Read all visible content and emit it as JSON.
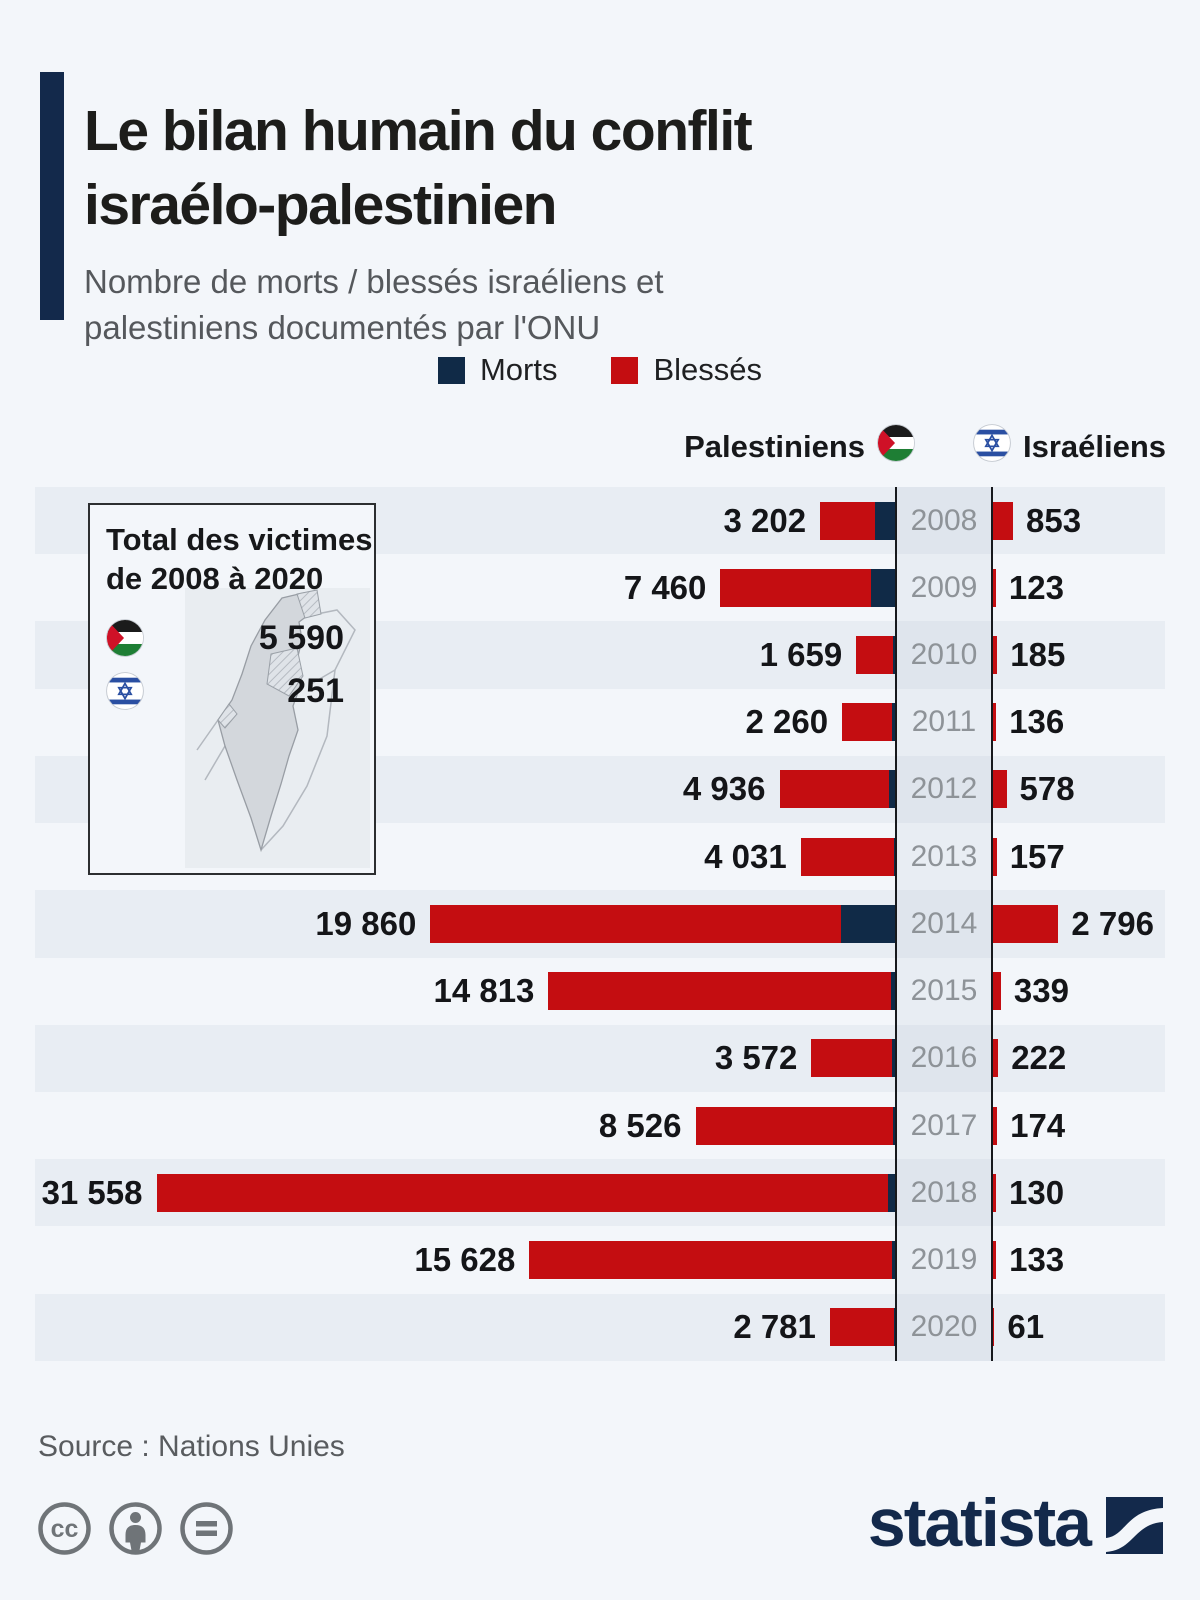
{
  "header": {
    "title": "Le bilan humain du conflit\nisraélo-palestinien",
    "subtitle": "Nombre de morts / blessés israéliens et\npalestiniens documentés par l'ONU"
  },
  "legend": {
    "morts_label": "Morts",
    "blesses_label": "Blessés"
  },
  "columns": {
    "left_label": "Palestiniens",
    "right_label": "Israéliens"
  },
  "inset": {
    "title": "Total des victimes\nde 2008 à 2020",
    "palestiniens_total": "5 590",
    "israeliens_total": "251"
  },
  "chart_data": {
    "type": "bar",
    "orientation": "horizontal-diverging",
    "title": "Le bilan humain du conflit israélo-palestinien",
    "unit": "nombre de victimes (morts + blessés) documentées par l'ONU",
    "legend_position": "top-center",
    "axis_note": "colonne centrale des années ; barres Palestiniens vers la gauche, Israéliens vers la droite ; segment bleu marine = morts, rouge = blessés",
    "categories": [
      "2008",
      "2009",
      "2010",
      "2011",
      "2012",
      "2013",
      "2014",
      "2015",
      "2016",
      "2017",
      "2018",
      "2019",
      "2020"
    ],
    "series": [
      {
        "name": "Palestiniens — total",
        "values": [
          3202,
          7460,
          1659,
          2260,
          4936,
          4031,
          19860,
          14813,
          3572,
          8526,
          31558,
          15628,
          2781
        ]
      },
      {
        "name": "Palestiniens — morts (segment bleu, estimé à partir des pixels)",
        "values": [
          875,
          1025,
          90,
          120,
          260,
          40,
          2330,
          180,
          110,
          80,
          300,
          150,
          30
        ]
      },
      {
        "name": "Israéliens — total",
        "values": [
          853,
          123,
          185,
          136,
          578,
          157,
          2796,
          339,
          222,
          174,
          130,
          133,
          61
        ]
      }
    ],
    "labels": {
      "palestiniens": [
        "3 202",
        "7 460",
        "1 659",
        "2 260",
        "4 936",
        "4 031",
        "19 860",
        "14 813",
        "3 572",
        "8 526",
        "31 558",
        "15 628",
        "2 781"
      ],
      "israeliens": [
        "853",
        "123",
        "185",
        "136",
        "578",
        "157",
        "2 796",
        "339",
        "222",
        "174",
        "130",
        "133",
        "61"
      ]
    }
  },
  "footer": {
    "source": "Source : Nations Unies",
    "brand": "statista",
    "license_icons": [
      "cc-icon",
      "attribution-icon",
      "equal-icon"
    ]
  },
  "colors": {
    "morts": "#102a47",
    "blesses": "#c40d11",
    "accent_bar": "#13294b",
    "band": "#e8edf3",
    "background": "#f3f6fa",
    "year_text": "#8e9398",
    "axis_line": "#17191d"
  }
}
